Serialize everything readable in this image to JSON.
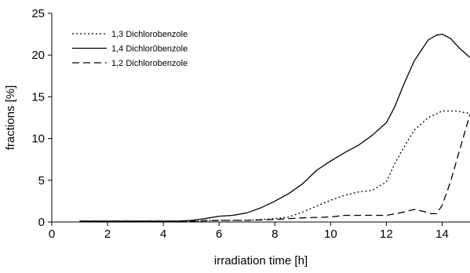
{
  "chart_data": {
    "type": "line",
    "xlabel": "irradiation time [h]",
    "ylabel": "fractions [%]",
    "xlim": [
      0,
      15
    ],
    "ylim": [
      0,
      25
    ],
    "x_ticks": [
      "0",
      "2",
      "4",
      "6",
      "8",
      "10",
      "12",
      "14"
    ],
    "y_ticks": [
      "0",
      "5",
      "10",
      "15",
      "20",
      "25"
    ],
    "grid": false,
    "legend_position": "top-left",
    "series": [
      {
        "name": "1,3 Dichlorobenzole",
        "line_style": "dotted",
        "x": [
          1,
          2,
          3,
          4,
          5,
          6,
          7,
          8,
          8.5,
          9,
          9.5,
          10,
          10.5,
          11,
          11.5,
          12,
          12.3,
          12.6,
          13,
          13.5,
          14,
          14.5,
          15
        ],
        "y": [
          0.1,
          0.1,
          0.1,
          0.1,
          0.1,
          0.2,
          0.2,
          0.4,
          0.6,
          1.2,
          1.9,
          2.6,
          3.2,
          3.6,
          3.8,
          4.8,
          7.0,
          8.8,
          11.0,
          12.5,
          13.3,
          13.3,
          13.0
        ]
      },
      {
        "name": "1,4 Dichlor0benzole",
        "line_style": "solid",
        "x": [
          1,
          2,
          3,
          4,
          4.5,
          5,
          5.5,
          6,
          6.5,
          7,
          7.5,
          8,
          8.5,
          9,
          9.5,
          10,
          10.5,
          11,
          11.5,
          12,
          12.3,
          12.6,
          13,
          13.5,
          13.8,
          14,
          14.3,
          14.6,
          15
        ],
        "y": [
          0.1,
          0.1,
          0.1,
          0.1,
          0.1,
          0.2,
          0.4,
          0.7,
          0.8,
          1.1,
          1.7,
          2.5,
          3.4,
          4.6,
          6.2,
          7.3,
          8.3,
          9.2,
          10.4,
          11.9,
          13.8,
          16.3,
          19.3,
          21.8,
          22.4,
          22.5,
          22.0,
          20.9,
          19.7
        ]
      },
      {
        "name": "1,2 Dichlorobenzole",
        "line_style": "dashed",
        "x": [
          1,
          2,
          3,
          4,
          5,
          6,
          7,
          8,
          9,
          10,
          10.5,
          11,
          11.5,
          12,
          12.5,
          13,
          13.3,
          13.6,
          13.8,
          14,
          14.3,
          14.6,
          15
        ],
        "y": [
          0.1,
          0.1,
          0.1,
          0.1,
          0.1,
          0.2,
          0.2,
          0.3,
          0.5,
          0.6,
          0.8,
          0.8,
          0.8,
          0.8,
          1.1,
          1.5,
          1.3,
          1.0,
          1.0,
          2.0,
          4.8,
          8.3,
          12.9
        ]
      }
    ]
  }
}
